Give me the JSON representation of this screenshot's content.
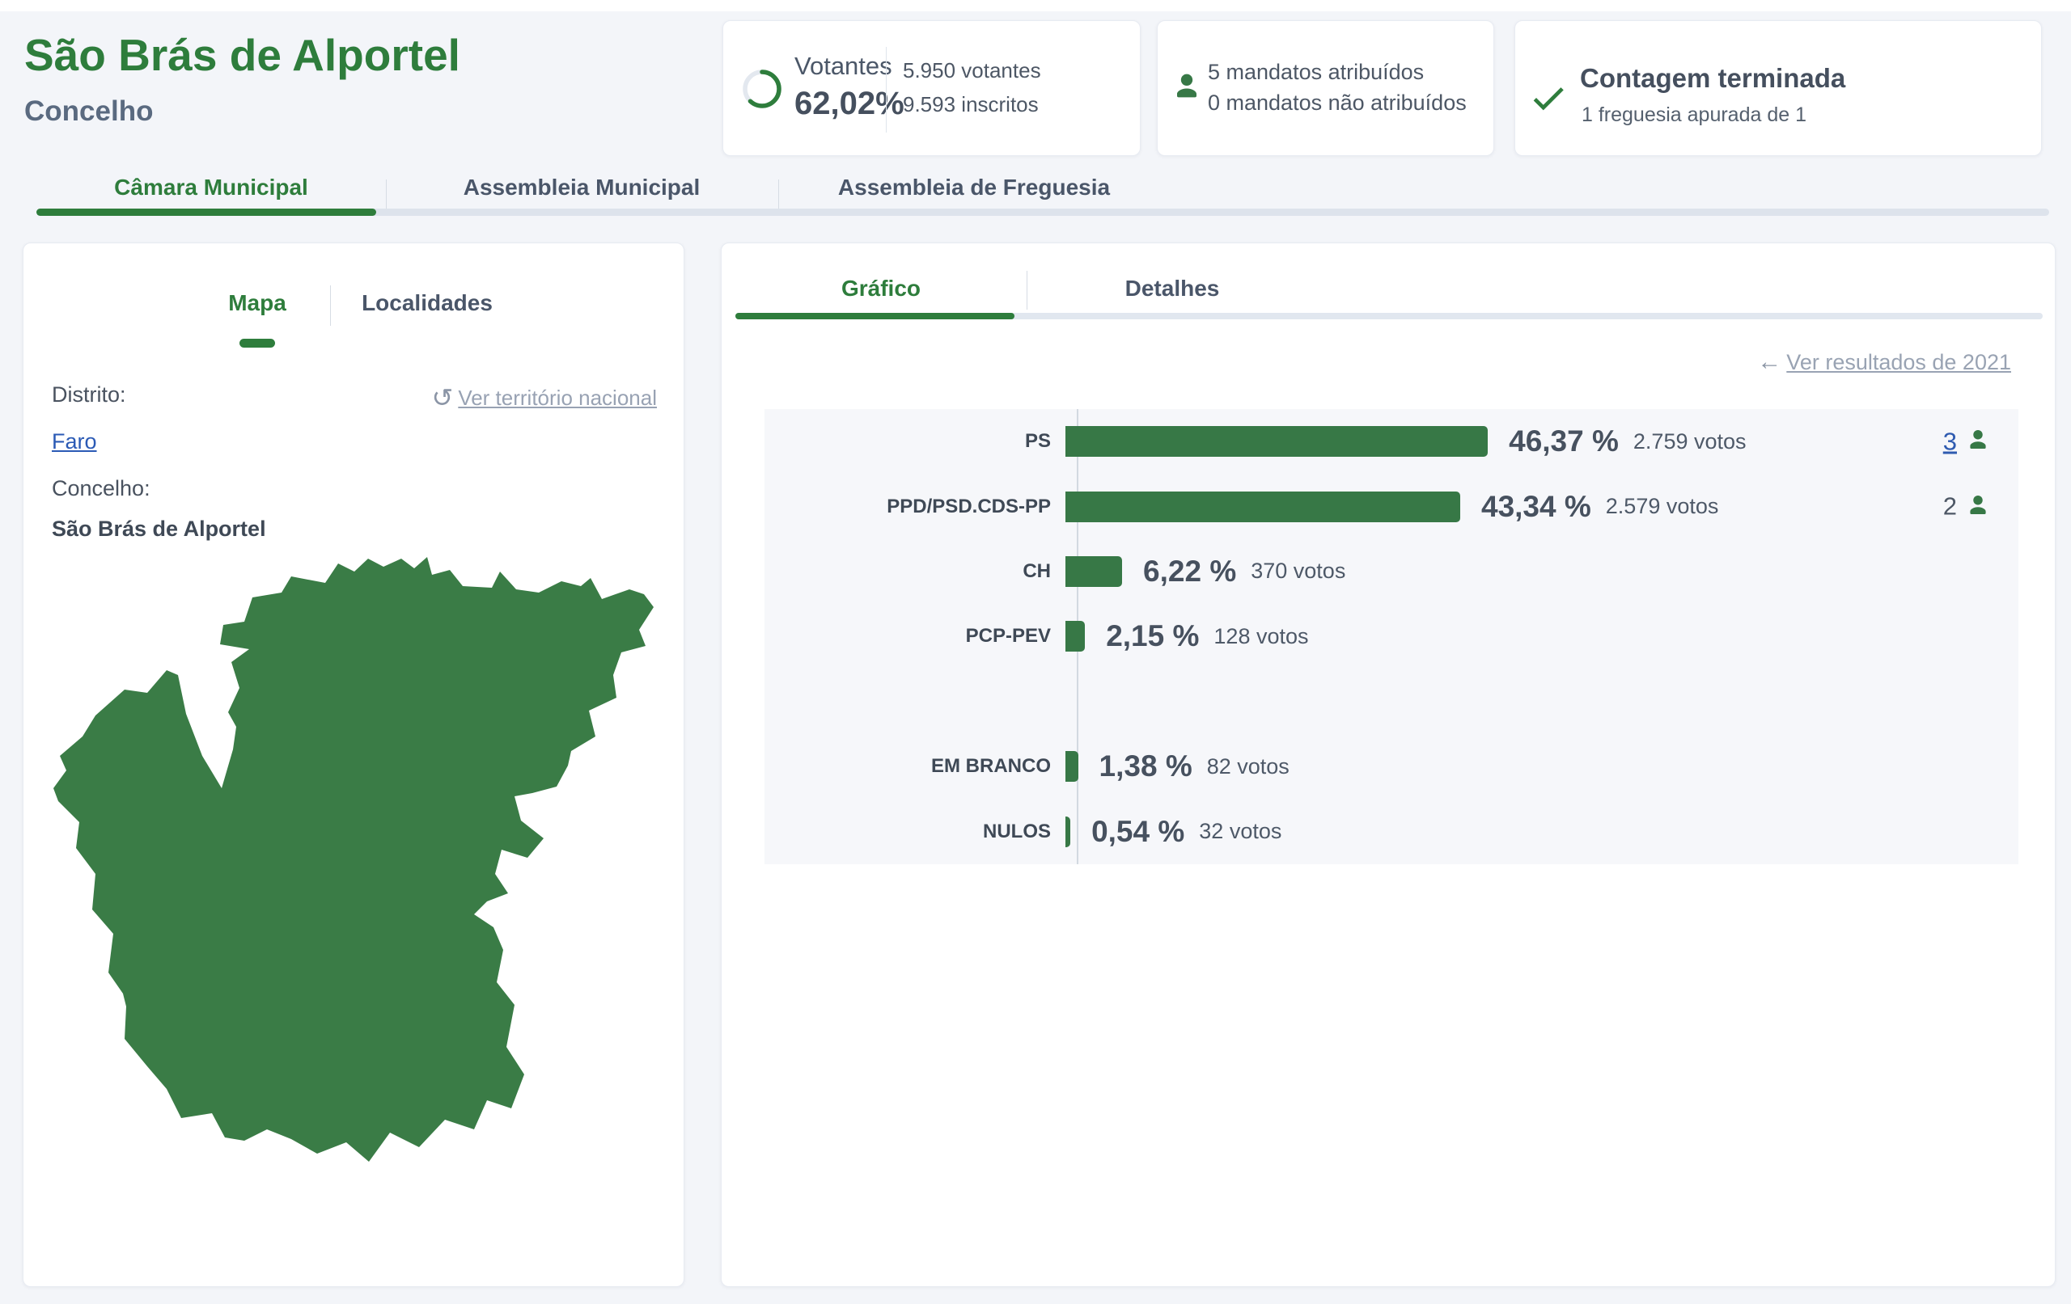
{
  "header": {
    "title": "São Brás de Alportel",
    "subtitle": "Concelho"
  },
  "cards": {
    "turnout": {
      "label": "Votantes",
      "percent": "62,02%",
      "percent_value": 62.02,
      "voters": "5.950 votantes",
      "registered": "9.593 inscritos"
    },
    "mandates": {
      "line1": "5 mandatos atribuídos",
      "line2": "0 mandatos não atribuídos"
    },
    "status": {
      "title": "Contagem terminada",
      "subtitle": "1 freguesia apurada de 1"
    }
  },
  "main_tabs": [
    {
      "id": "camara-municipal",
      "label": "Câmara Municipal",
      "active": true
    },
    {
      "id": "assembleia-municipal",
      "label": "Assembleia Municipal",
      "active": false
    },
    {
      "id": "assembleia-de-freguesia",
      "label": "Assembleia de Freguesia",
      "active": false
    }
  ],
  "map_panel": {
    "tabs": [
      {
        "id": "mapa",
        "label": "Mapa",
        "active": true
      },
      {
        "id": "localidades",
        "label": "Localidades",
        "active": false
      }
    ],
    "reset_link": "Ver território nacional",
    "district_label": "Distrito:",
    "district_value": "Faro",
    "municipality_label": "Concelho:",
    "municipality_value": "São Brás de Alportel"
  },
  "results_panel": {
    "tabs": [
      {
        "id": "grafico",
        "label": "Gráfico",
        "active": true
      },
      {
        "id": "detalhes",
        "label": "Detalhes",
        "active": false
      }
    ],
    "history_link": "Ver resultados de 2021"
  },
  "chart_data": {
    "type": "bar",
    "orientation": "horizontal",
    "title": "Resultados Câmara Municipal",
    "xlim": [
      0,
      100
    ],
    "grid": false,
    "bar_color": "#377846",
    "rows": [
      {
        "party": "PS",
        "percent": 46.37,
        "percent_label": "46,37 %",
        "votes": 2759,
        "votes_label": "2.759 votos",
        "mandates": 3,
        "mandates_link": true,
        "slot": 0
      },
      {
        "party": "PPD/PSD.CDS-PP",
        "percent": 43.34,
        "percent_label": "43,34 %",
        "votes": 2579,
        "votes_label": "2.579 votos",
        "mandates": 2,
        "mandates_link": false,
        "slot": 1
      },
      {
        "party": "CH",
        "percent": 6.22,
        "percent_label": "6,22 %",
        "votes": 370,
        "votes_label": "370 votos",
        "mandates": null,
        "mandates_link": false,
        "slot": 2
      },
      {
        "party": "PCP-PEV",
        "percent": 2.15,
        "percent_label": "2,15 %",
        "votes": 128,
        "votes_label": "128 votos",
        "mandates": null,
        "mandates_link": false,
        "slot": 3
      },
      {
        "party": "EM BRANCO",
        "percent": 1.38,
        "percent_label": "1,38 %",
        "votes": 82,
        "votes_label": "82 votos",
        "mandates": null,
        "mandates_link": false,
        "slot": 5
      },
      {
        "party": "NULOS",
        "percent": 0.54,
        "percent_label": "0,54 %",
        "votes": 32,
        "votes_label": "32 votos",
        "mandates": null,
        "mandates_link": false,
        "slot": 6
      }
    ]
  },
  "icons": {
    "reset": "↺",
    "back_arrow": "←"
  },
  "colors": {
    "green_text": "#2e7d3c",
    "green_fill": "#377846",
    "link_blue": "#2f5bb0",
    "muted_link": "#98a2b3",
    "page_bg": "#f3f5f9",
    "chart_bg": "#f6f7fa"
  }
}
